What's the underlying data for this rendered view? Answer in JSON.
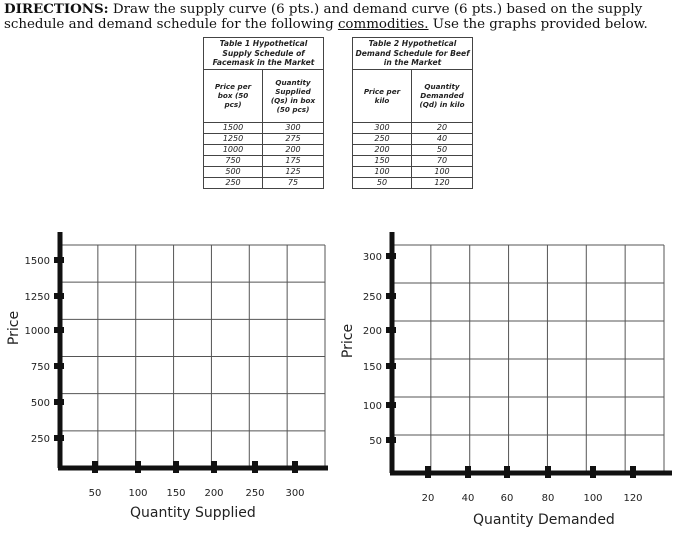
{
  "directions": {
    "bold": "DIRECTIONS:",
    "text_a": " Draw the supply curve (6 pts.) and demand curve (6 pts.) based on the supply schedule and demand schedule for the following ",
    "underlined": "commodities.",
    "text_b": " Use the graphs provided below."
  },
  "supply_table": {
    "title": [
      "Table 1 Hypothetical",
      "Supply Schedule of",
      "Facemask in the Market"
    ],
    "col1_header": [
      "Price per",
      "box (50",
      "pcs)"
    ],
    "col2_header": [
      "Quantity",
      "Supplied",
      "(Qs) in box",
      "(50 pcs)"
    ],
    "rows": [
      [
        "1500",
        "300"
      ],
      [
        "1250",
        "275"
      ],
      [
        "1000",
        "200"
      ],
      [
        "750",
        "175"
      ],
      [
        "500",
        "125"
      ],
      [
        "250",
        "75"
      ]
    ]
  },
  "demand_table": {
    "title": [
      "Table 2 Hypothetical",
      "Demand Schedule for Beef",
      "in the Market"
    ],
    "col1_header": [
      "Price per",
      "kilo"
    ],
    "col2_header": [
      "Quantity",
      "Demanded",
      "(Qd) in kilo"
    ],
    "rows": [
      [
        "300",
        "20"
      ],
      [
        "250",
        "40"
      ],
      [
        "200",
        "50"
      ],
      [
        "150",
        "70"
      ],
      [
        "100",
        "100"
      ],
      [
        "50",
        "120"
      ]
    ]
  },
  "supply_graph": {
    "ylabel": "Price",
    "xlabel": "Quantity Supplied",
    "y_ticks": [
      "1500",
      "1250",
      "1000",
      "750",
      "500",
      "250"
    ],
    "x_ticks": [
      "50",
      "100",
      "150",
      "200",
      "250",
      "300"
    ]
  },
  "demand_graph": {
    "ylabel": "Price",
    "xlabel": "Quantity Demanded",
    "y_ticks": [
      "300",
      "250",
      "200",
      "150",
      "100",
      "50"
    ],
    "x_ticks": [
      "20",
      "40",
      "60",
      "80",
      "100",
      "120"
    ]
  }
}
